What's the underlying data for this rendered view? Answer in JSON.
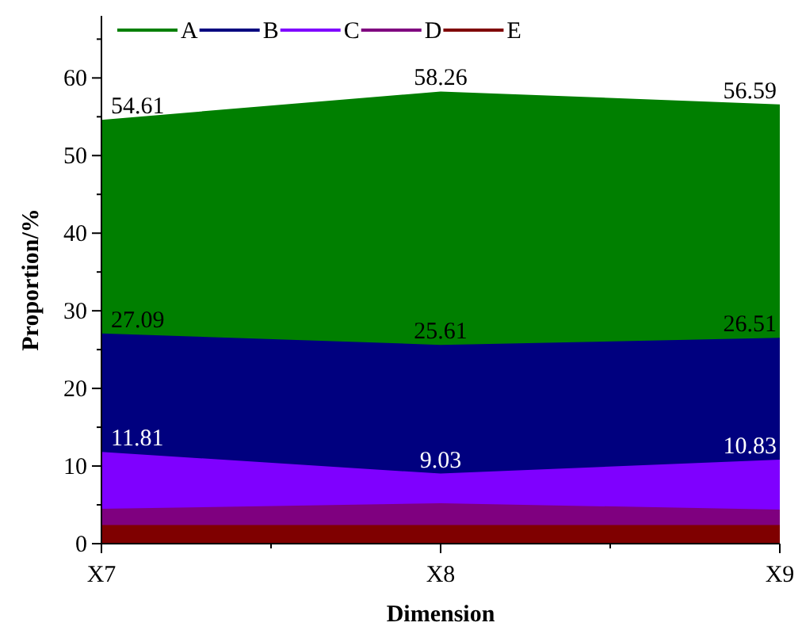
{
  "chart_data": {
    "type": "area",
    "xlabel": "Dimension",
    "ylabel": "Proportion/%",
    "categories": [
      "X7",
      "X8",
      "X9"
    ],
    "ylim": [
      0,
      68
    ],
    "yticks": [
      0,
      10,
      20,
      30,
      40,
      50,
      60
    ],
    "legend": "top left",
    "grid": false,
    "series": [
      {
        "name": "A",
        "color": "#007f00",
        "values": [
          54.61,
          58.26,
          56.59
        ],
        "value_labels": [
          "54.61",
          "58.26",
          "56.59"
        ]
      },
      {
        "name": "B",
        "color": "#00007f",
        "values": [
          27.09,
          25.61,
          26.51
        ],
        "value_labels": [
          "27.09",
          "25.61",
          "26.51"
        ]
      },
      {
        "name": "C",
        "color": "#7f00ff",
        "values": [
          11.81,
          9.03,
          10.83
        ],
        "value_labels": [
          "11.81",
          "9.03",
          "10.83"
        ]
      },
      {
        "name": "D",
        "color": "#7f007f",
        "values": [
          4.5,
          5.2,
          4.4
        ]
      },
      {
        "name": "E",
        "color": "#7f0000",
        "values": [
          2.4,
          2.4,
          2.4
        ]
      }
    ]
  }
}
